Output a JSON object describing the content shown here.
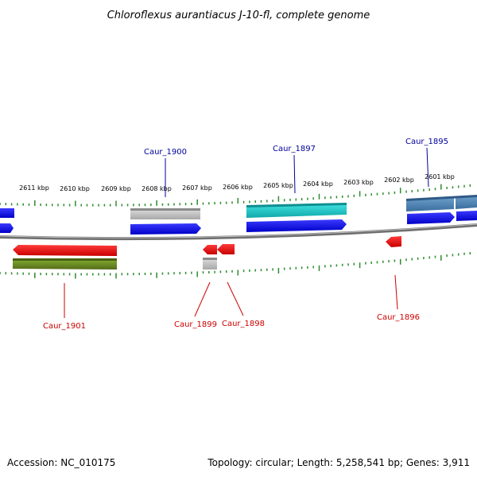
{
  "title": "Chloroflexus aurantiacus J-10-fl, complete genome",
  "footer": {
    "accession": "Accession: NC_010175",
    "summary": "Topology: circular; Length: 5,258,541 bp; Genes: 3,911"
  },
  "kbp_labels": [
    "2611 kbp",
    "2610 kbp",
    "2609 kbp",
    "2608 kbp",
    "2607 kbp",
    "2606 kbp",
    "2605 kbp",
    "2604 kbp",
    "2603 kbp",
    "2602 kbp",
    "2601 kbp"
  ],
  "gene_labels": {
    "top": [
      "Caur_1900",
      "Caur_1897",
      "Caur_1895"
    ],
    "bottom": [
      "Caur_1901",
      "Caur_1899",
      "Caur_1898",
      "Caur_1896"
    ]
  },
  "colors": {
    "forward_cds": "#0000ff",
    "reverse_cds": "#ff0000",
    "forward_label": "#00009b",
    "reverse_label": "#cc0000",
    "backbone": "#808080",
    "tick": "#2e8b2e",
    "gene_cyan": "#20c8c8",
    "gene_steelblue": "#4a7fb0",
    "gene_olive": "#6b8e23",
    "gene_gray": "#b0b0b0"
  }
}
